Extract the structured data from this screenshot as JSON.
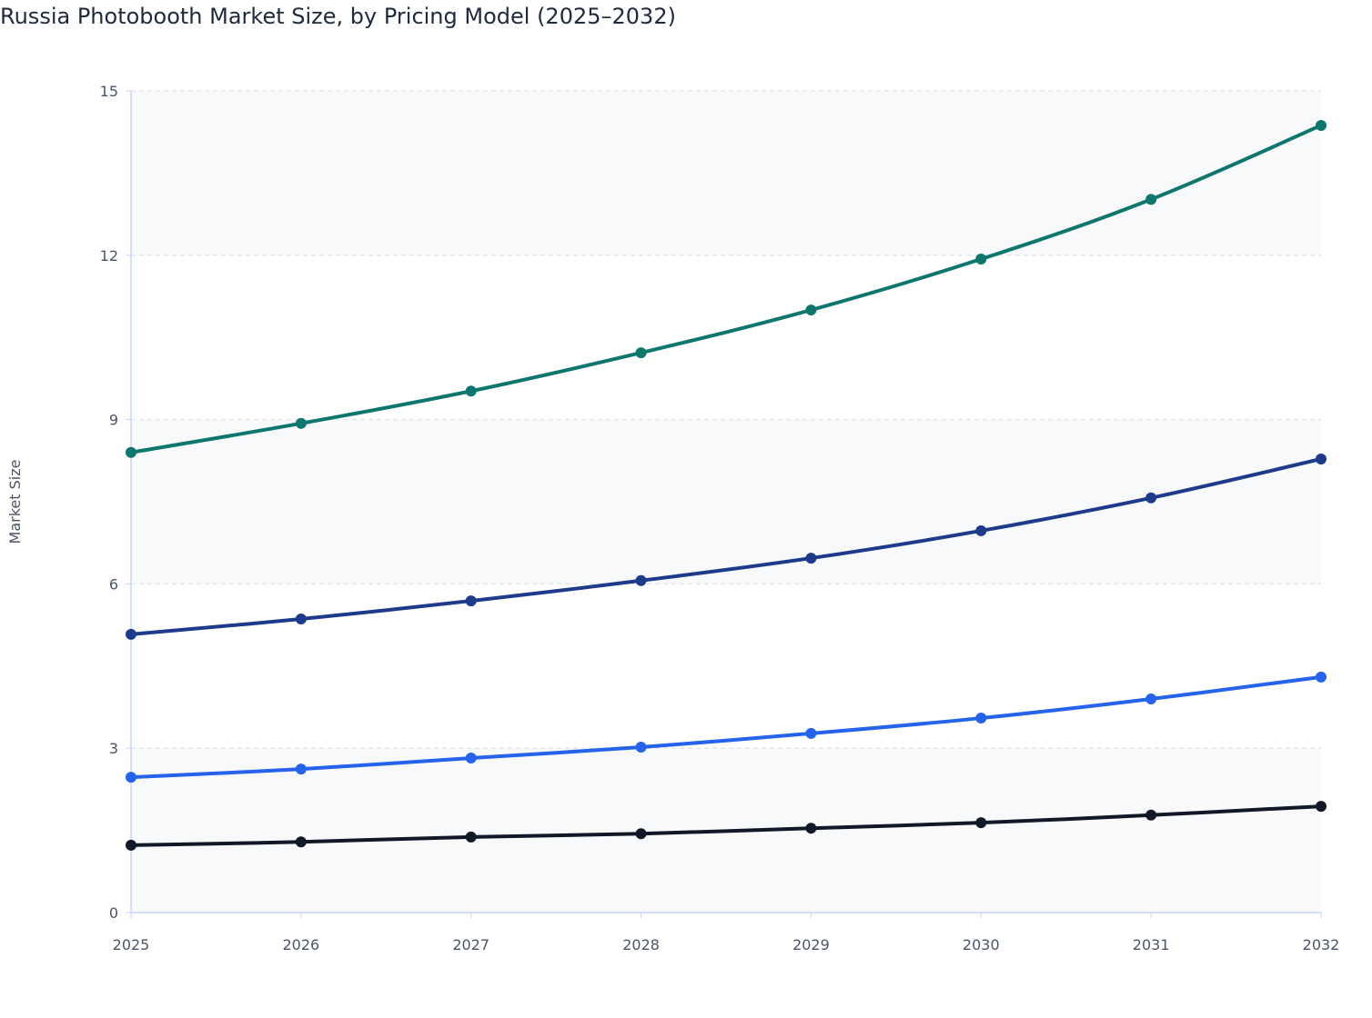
{
  "chart_data": {
    "type": "line",
    "title": "Russia Photobooth Market Size, by Pricing Model (2025–2032)",
    "xlabel": "",
    "ylabel": "Market Size",
    "x": [
      "2025",
      "2026",
      "2027",
      "2028",
      "2029",
      "2030",
      "2031",
      "2032"
    ],
    "ylim": [
      0,
      15
    ],
    "yticks": [
      0,
      3,
      6,
      9,
      12,
      15
    ],
    "grid": true,
    "legend": "none",
    "series": [
      {
        "color": "#0f766e",
        "values": [
          8.4,
          8.93,
          9.52,
          10.22,
          11.0,
          11.93,
          13.02,
          14.37
        ]
      },
      {
        "color": "#1e3a8a",
        "values": [
          5.08,
          5.36,
          5.69,
          6.06,
          6.47,
          6.97,
          7.57,
          8.28
        ]
      },
      {
        "color": "#2563eb",
        "values": [
          2.47,
          2.62,
          2.82,
          3.02,
          3.27,
          3.55,
          3.9,
          4.3
        ]
      },
      {
        "color": "#111827",
        "values": [
          1.23,
          1.29,
          1.38,
          1.44,
          1.54,
          1.64,
          1.78,
          1.94
        ]
      }
    ]
  }
}
